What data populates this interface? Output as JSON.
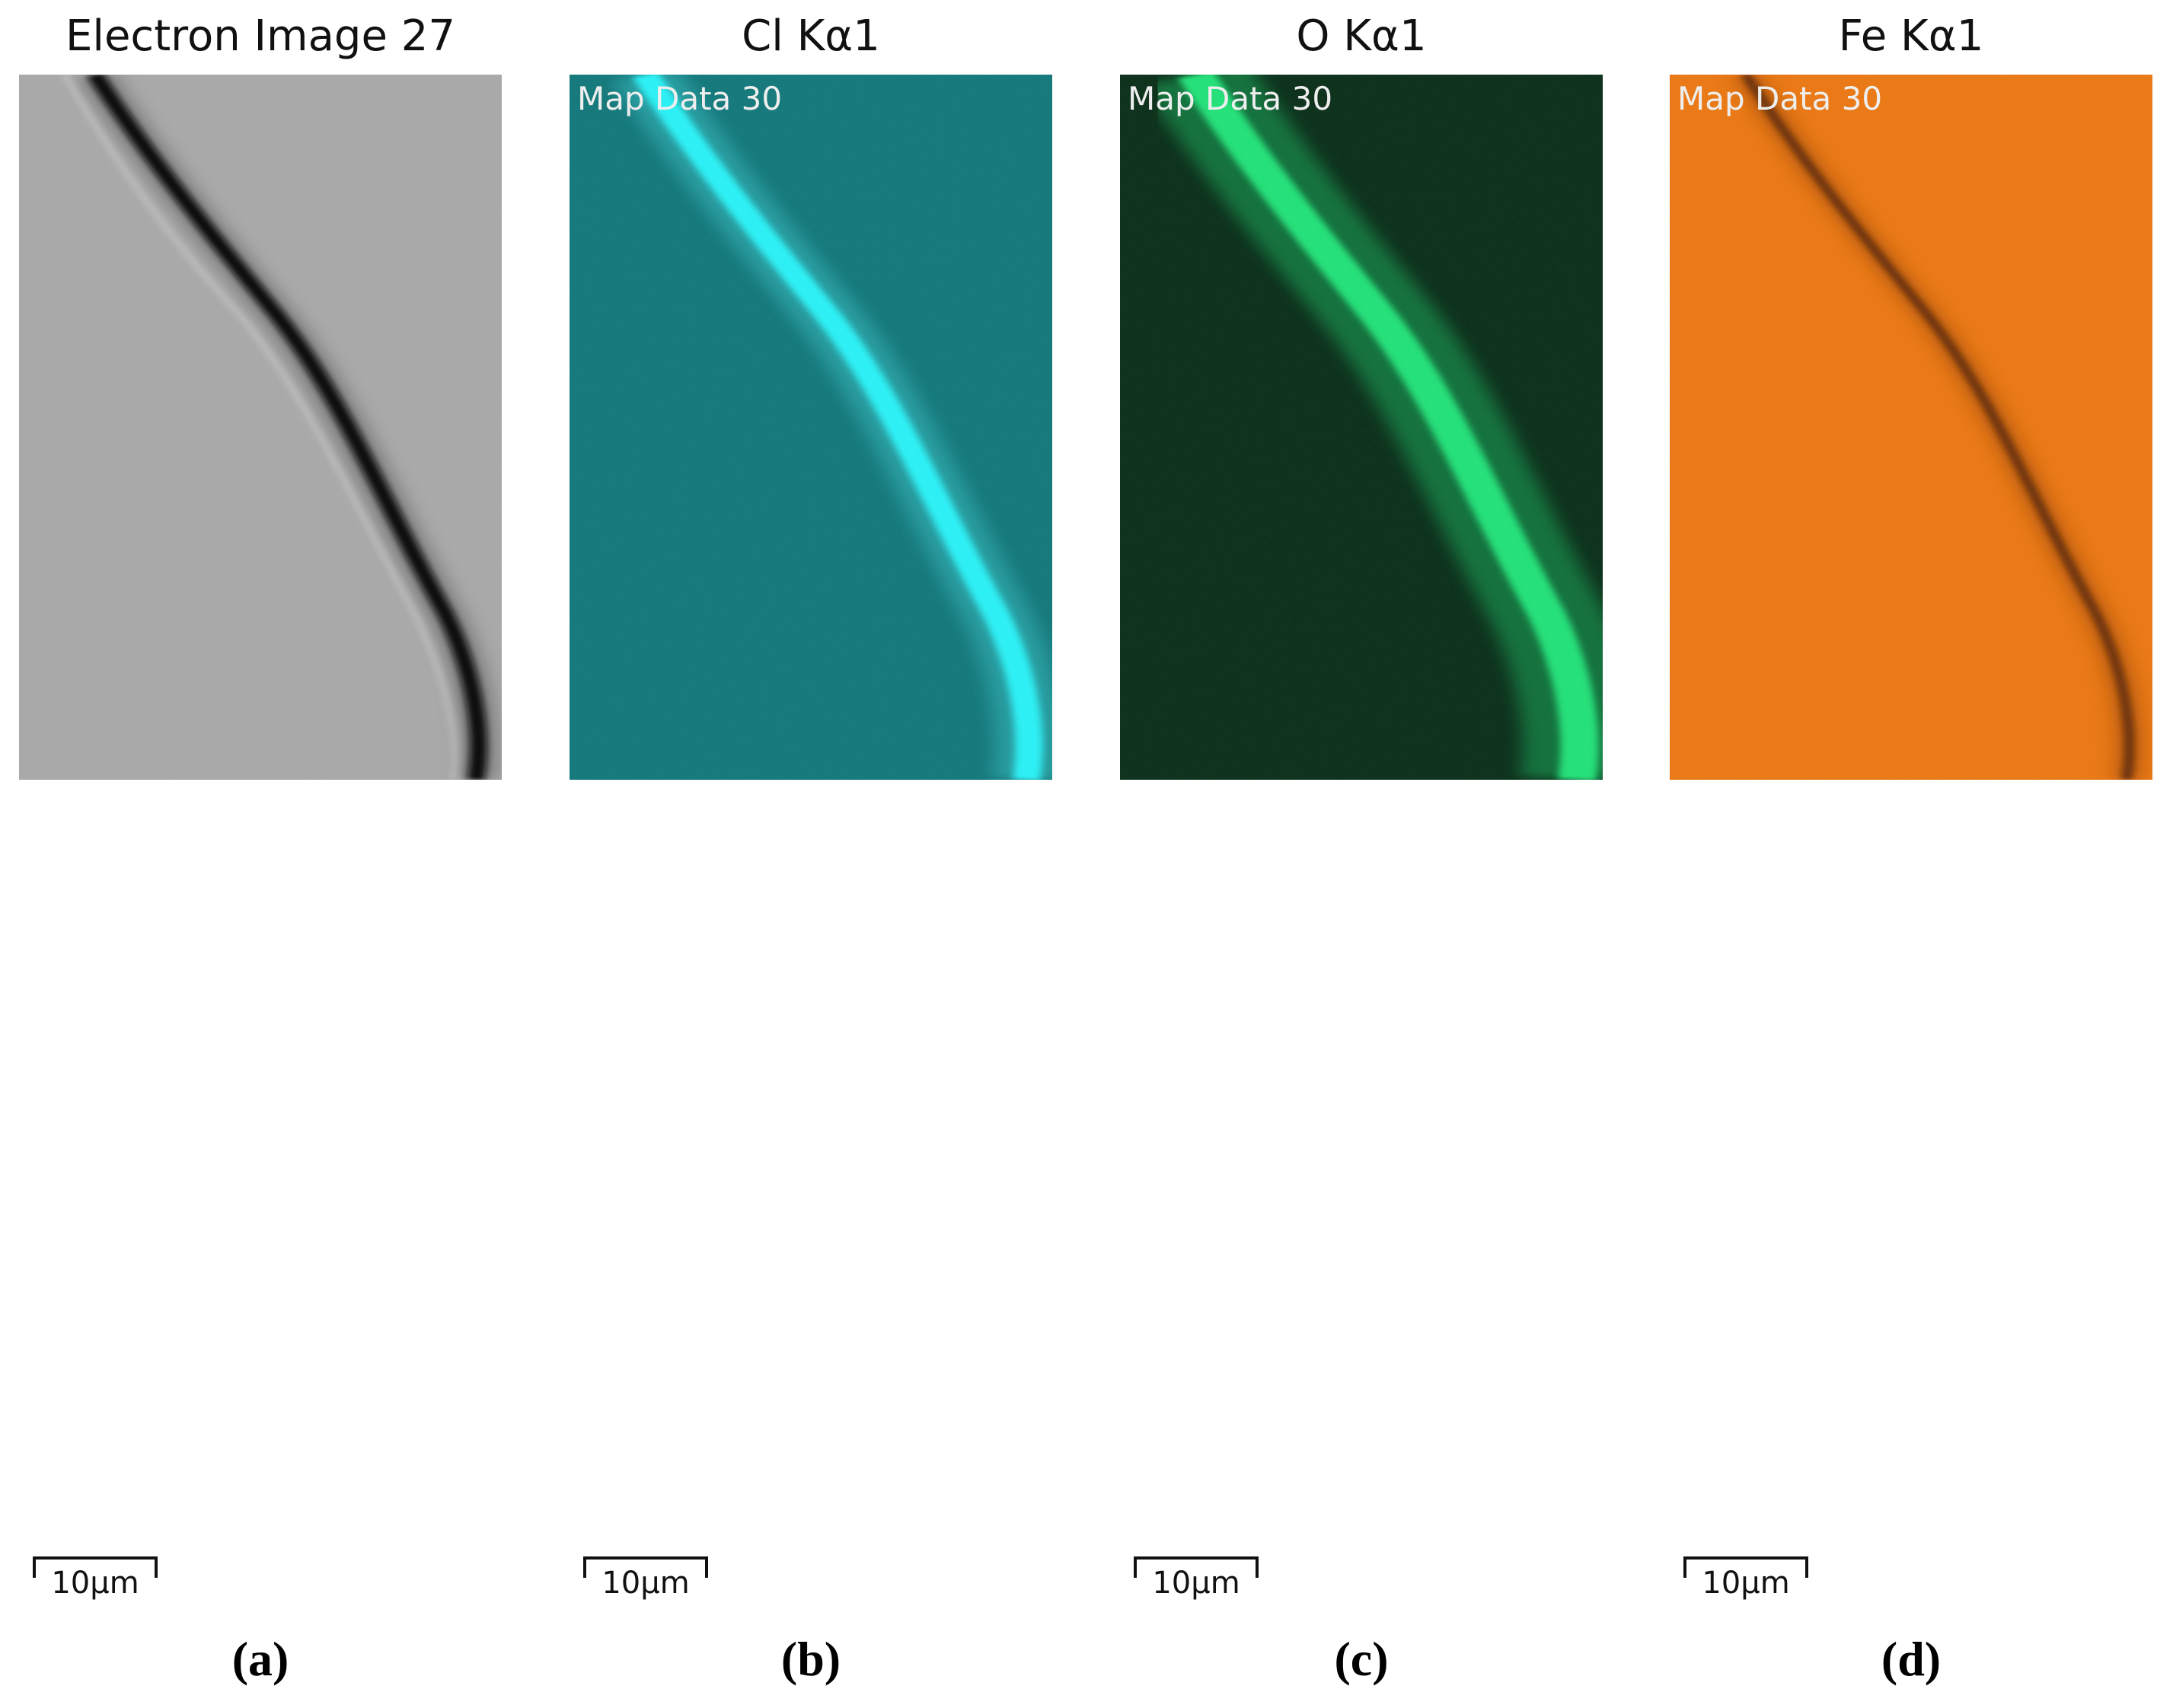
{
  "panels": [
    {
      "title": "Electron Image 27",
      "scale_label": "10μm",
      "caption": "(a)"
    },
    {
      "title": "Cl Kα1",
      "overlay": "Map Data 30",
      "scale_label": "10μm",
      "caption": "(b)"
    },
    {
      "title": "O Kα1",
      "overlay": "Map Data 30",
      "scale_label": "10μm",
      "caption": "(c)"
    },
    {
      "title": "Fe Kα1",
      "overlay": "Map Data 30",
      "scale_label": "10μm",
      "caption": "(d)"
    }
  ]
}
